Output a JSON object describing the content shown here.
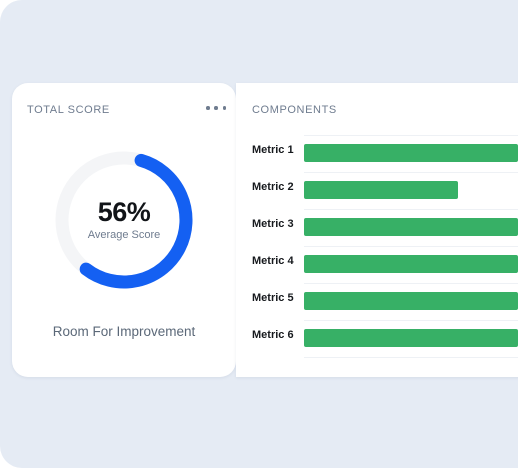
{
  "score_card": {
    "title": "TOTAL SCORE",
    "menu_icon": "more-horizontal-icon",
    "gauge": {
      "percent": 56,
      "value_label": "56%",
      "caption": "Average Score",
      "track_color": "#f4f5f7",
      "fill_color": "#1460f2"
    },
    "status": "Room For Improvement"
  },
  "components_card": {
    "title": "COMPONENTS",
    "bar_color": "#37b066",
    "metrics": [
      {
        "label": "Metric 1",
        "level": 1.0
      },
      {
        "label": "Metric 2",
        "level": 0.72
      },
      {
        "label": "Metric 3",
        "level": 1.0
      },
      {
        "label": "Metric 4",
        "level": 1.0
      },
      {
        "label": "Metric 5",
        "level": 1.0
      },
      {
        "label": "Metric 6",
        "level": 1.0
      }
    ]
  }
}
